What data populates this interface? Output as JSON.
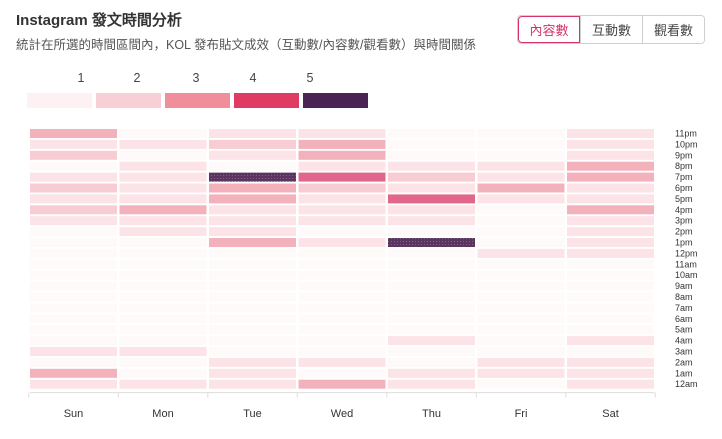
{
  "header": {
    "title": "Instagram 發文時間分析",
    "subtitle": "統計在所選的時間區間內，KOL 發布貼文成效（互動數/內容數/觀看數）與時間關係"
  },
  "tabs": [
    {
      "label": "內容數",
      "active": true
    },
    {
      "label": "互動數",
      "active": false
    },
    {
      "label": "觀看數",
      "active": false
    }
  ],
  "legend": {
    "labels": [
      "1",
      "2",
      "3",
      "4",
      "5"
    ],
    "colors": [
      "#fdf1f3",
      "#f7cfd5",
      "#f08e9c",
      "#e03c63",
      "#4a2452"
    ]
  },
  "chart_data": {
    "type": "heatmap",
    "x_categories": [
      "Sun",
      "Mon",
      "Tue",
      "Wed",
      "Thu",
      "Fri",
      "Sat"
    ],
    "y_categories": [
      "11pm",
      "10pm",
      "9pm",
      "8pm",
      "7pm",
      "6pm",
      "5pm",
      "4pm",
      "3pm",
      "2pm",
      "1pm",
      "12pm",
      "11am",
      "10am",
      "9am",
      "8am",
      "7am",
      "6am",
      "5am",
      "4am",
      "3am",
      "2am",
      "1am",
      "12am"
    ],
    "scale_levels": [
      0,
      1,
      2,
      3,
      4,
      5
    ],
    "level_colors": [
      "#fefafa",
      "#fbe3e7",
      "#f7ccd3",
      "#f3b1bc",
      "#e0678b",
      "#5a3560"
    ],
    "values": [
      [
        3,
        0,
        1,
        1,
        0,
        0,
        1
      ],
      [
        1,
        1,
        2,
        3,
        0,
        0,
        1
      ],
      [
        2,
        0,
        1,
        3,
        0,
        0,
        1
      ],
      [
        0,
        1,
        0,
        1,
        1,
        1,
        3
      ],
      [
        1,
        1,
        5,
        4,
        2,
        1,
        3
      ],
      [
        2,
        1,
        3,
        2,
        1,
        3,
        1
      ],
      [
        1,
        1,
        3,
        1,
        4,
        1,
        1
      ],
      [
        2,
        3,
        1,
        1,
        1,
        0,
        3
      ],
      [
        1,
        1,
        1,
        1,
        1,
        0,
        1
      ],
      [
        0,
        1,
        1,
        0,
        0,
        0,
        1
      ],
      [
        0,
        0,
        3,
        1,
        5,
        0,
        1
      ],
      [
        0,
        0,
        0,
        0,
        0,
        1,
        1
      ],
      [
        0,
        0,
        0,
        0,
        0,
        0,
        0
      ],
      [
        0,
        0,
        0,
        0,
        0,
        0,
        0
      ],
      [
        0,
        0,
        0,
        0,
        0,
        0,
        0
      ],
      [
        0,
        0,
        0,
        0,
        0,
        0,
        0
      ],
      [
        0,
        0,
        0,
        0,
        0,
        0,
        0
      ],
      [
        0,
        0,
        0,
        0,
        0,
        0,
        0
      ],
      [
        0,
        0,
        0,
        0,
        0,
        0,
        0
      ],
      [
        0,
        0,
        0,
        0,
        1,
        0,
        1
      ],
      [
        1,
        1,
        0,
        0,
        0,
        0,
        0
      ],
      [
        0,
        0,
        1,
        1,
        0,
        1,
        1
      ],
      [
        3,
        0,
        1,
        0,
        1,
        1,
        1
      ],
      [
        1,
        1,
        1,
        3,
        1,
        0,
        1
      ]
    ]
  }
}
